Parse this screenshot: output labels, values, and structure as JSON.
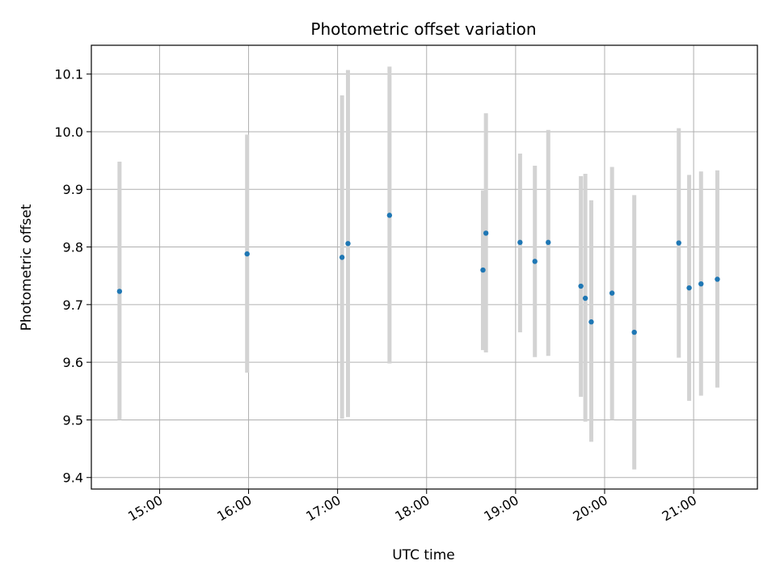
{
  "chart_data": {
    "type": "scatter",
    "title": "Photometric offset variation",
    "xlabel": "UTC time",
    "ylabel": "Photometric offset",
    "x_axis_type": "time",
    "xlim": [
      "14:14",
      "21:43"
    ],
    "ylim": [
      9.38,
      10.15
    ],
    "x_ticks": [
      "15:00",
      "16:00",
      "17:00",
      "18:00",
      "19:00",
      "20:00",
      "21:00"
    ],
    "y_ticks": [
      9.4,
      9.5,
      9.6,
      9.7,
      9.8,
      9.9,
      10.0,
      10.1
    ],
    "y_tick_labels": [
      "9.4",
      "9.5",
      "9.6",
      "9.7",
      "9.8",
      "9.9",
      "10.0",
      "10.1"
    ],
    "grid": true,
    "marker_color": "#1f77b4",
    "errorbar_color": "#d3d3d3",
    "points": [
      {
        "x": "14:33",
        "y": 9.723,
        "ylow": 9.5,
        "yhigh": 9.948
      },
      {
        "x": "15:59",
        "y": 9.788,
        "ylow": 9.582,
        "yhigh": 9.995
      },
      {
        "x": "17:03",
        "y": 9.782,
        "ylow": 9.502,
        "yhigh": 10.063
      },
      {
        "x": "17:07",
        "y": 9.806,
        "ylow": 9.505,
        "yhigh": 10.107
      },
      {
        "x": "17:35",
        "y": 9.855,
        "ylow": 9.598,
        "yhigh": 10.113
      },
      {
        "x": "18:38",
        "y": 9.76,
        "ylow": 9.621,
        "yhigh": 9.898
      },
      {
        "x": "18:40",
        "y": 9.824,
        "ylow": 9.617,
        "yhigh": 10.032
      },
      {
        "x": "19:03",
        "y": 9.808,
        "ylow": 9.652,
        "yhigh": 9.962
      },
      {
        "x": "19:13",
        "y": 9.775,
        "ylow": 9.609,
        "yhigh": 9.941
      },
      {
        "x": "19:22",
        "y": 9.808,
        "ylow": 9.611,
        "yhigh": 10.003
      },
      {
        "x": "19:44",
        "y": 9.732,
        "ylow": 9.54,
        "yhigh": 9.923
      },
      {
        "x": "19:47",
        "y": 9.711,
        "ylow": 9.497,
        "yhigh": 9.927
      },
      {
        "x": "19:51",
        "y": 9.67,
        "ylow": 9.462,
        "yhigh": 9.881
      },
      {
        "x": "20:05",
        "y": 9.72,
        "ylow": 9.5,
        "yhigh": 9.939
      },
      {
        "x": "20:20",
        "y": 9.652,
        "ylow": 9.414,
        "yhigh": 9.89
      },
      {
        "x": "20:50",
        "y": 9.807,
        "ylow": 9.608,
        "yhigh": 10.006
      },
      {
        "x": "20:57",
        "y": 9.729,
        "ylow": 9.533,
        "yhigh": 9.925
      },
      {
        "x": "21:05",
        "y": 9.736,
        "ylow": 9.542,
        "yhigh": 9.931
      },
      {
        "x": "21:16",
        "y": 9.744,
        "ylow": 9.556,
        "yhigh": 9.933
      }
    ]
  }
}
